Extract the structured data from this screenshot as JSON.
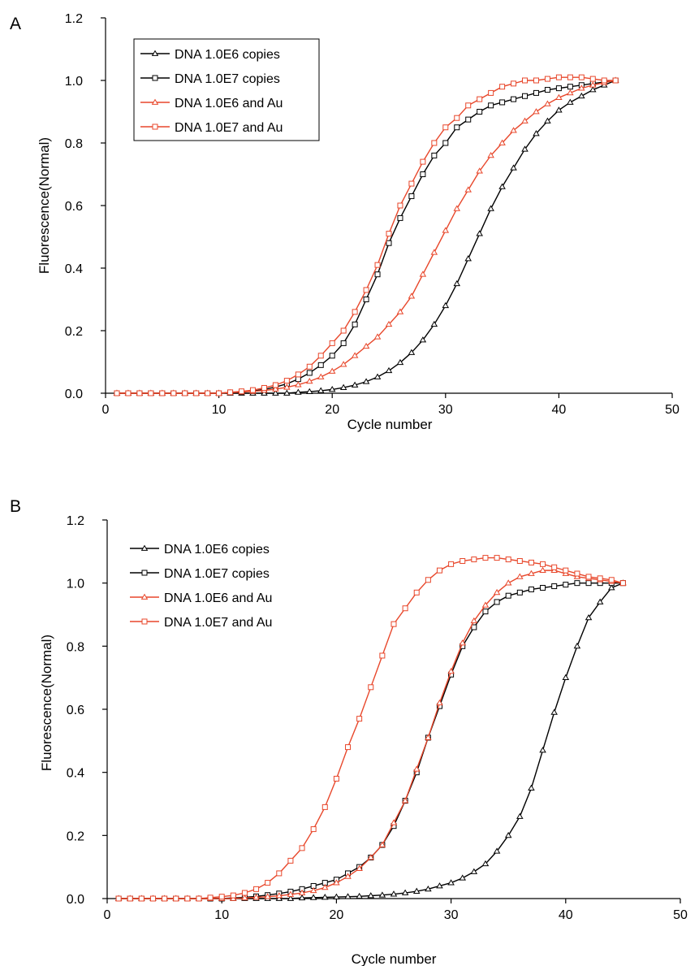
{
  "figure": {
    "panels": [
      {
        "label": "A",
        "xlabel": "Cycle number",
        "ylabel": "Fluorescence(Normal)"
      },
      {
        "label": "B",
        "xlabel": "Cycle number",
        "ylabel": "Fluorescence(Normal)"
      }
    ]
  },
  "chart_data": [
    {
      "type": "line",
      "panel": "A",
      "xlabel": "Cycle number",
      "ylabel": "Fluorescence(Normal)",
      "xlim": [
        0,
        50
      ],
      "ylim": [
        0.0,
        1.2
      ],
      "xticks": [
        "0",
        "10",
        "20",
        "30",
        "40",
        "50"
      ],
      "yticks": [
        "0.0",
        "0.2",
        "0.4",
        "0.6",
        "0.8",
        "1.0",
        "1.2"
      ],
      "grid": false,
      "legend": "top-left, boxed",
      "x": [
        1,
        2,
        3,
        4,
        5,
        6,
        7,
        8,
        9,
        10,
        11,
        12,
        13,
        14,
        15,
        16,
        17,
        18,
        19,
        20,
        21,
        22,
        23,
        24,
        25,
        26,
        27,
        28,
        29,
        30,
        31,
        32,
        33,
        34,
        35,
        36,
        37,
        38,
        39,
        40,
        41,
        42,
        43,
        44,
        45
      ],
      "series": [
        {
          "name": "DNA 1.0E6 copies",
          "color": "#000000",
          "marker": "triangle",
          "values": [
            0,
            0,
            0,
            0,
            0,
            0,
            0,
            0,
            0,
            0,
            0,
            0,
            0,
            0,
            0,
            0,
            0.003,
            0.005,
            0.008,
            0.012,
            0.018,
            0.026,
            0.037,
            0.052,
            0.072,
            0.098,
            0.13,
            0.17,
            0.22,
            0.28,
            0.35,
            0.43,
            0.51,
            0.59,
            0.66,
            0.72,
            0.78,
            0.83,
            0.87,
            0.905,
            0.93,
            0.95,
            0.97,
            0.985,
            1.0
          ]
        },
        {
          "name": "DNA 1.0E7 copies",
          "color": "#000000",
          "marker": "square",
          "values": [
            0,
            0,
            0,
            0,
            0,
            0,
            0,
            0,
            0,
            0,
            0.002,
            0.004,
            0.007,
            0.012,
            0.02,
            0.03,
            0.045,
            0.065,
            0.09,
            0.12,
            0.16,
            0.22,
            0.3,
            0.38,
            0.48,
            0.56,
            0.63,
            0.7,
            0.76,
            0.8,
            0.85,
            0.875,
            0.9,
            0.92,
            0.93,
            0.94,
            0.95,
            0.96,
            0.97,
            0.975,
            0.98,
            0.985,
            0.99,
            0.995,
            1.0
          ]
        },
        {
          "name": "DNA 1.0E6 and Au",
          "color": "#e8472b",
          "marker": "triangle",
          "values": [
            0,
            0,
            0,
            0,
            0,
            0,
            0,
            0,
            0,
            0,
            0.002,
            0.004,
            0.006,
            0.009,
            0.013,
            0.019,
            0.027,
            0.038,
            0.052,
            0.07,
            0.092,
            0.12,
            0.15,
            0.18,
            0.22,
            0.26,
            0.31,
            0.38,
            0.45,
            0.52,
            0.59,
            0.65,
            0.71,
            0.76,
            0.8,
            0.84,
            0.87,
            0.9,
            0.925,
            0.945,
            0.96,
            0.975,
            0.985,
            0.993,
            1.0
          ]
        },
        {
          "name": "DNA 1.0E7 and Au",
          "color": "#e8472b",
          "marker": "square",
          "values": [
            0,
            0,
            0,
            0,
            0,
            0,
            0,
            0,
            0,
            0,
            0.003,
            0.006,
            0.01,
            0.017,
            0.026,
            0.04,
            0.06,
            0.085,
            0.12,
            0.16,
            0.2,
            0.26,
            0.33,
            0.41,
            0.51,
            0.6,
            0.67,
            0.74,
            0.8,
            0.85,
            0.88,
            0.92,
            0.94,
            0.96,
            0.98,
            0.99,
            1.0,
            1.0,
            1.005,
            1.01,
            1.01,
            1.01,
            1.005,
            1.0,
            1.0
          ]
        }
      ]
    },
    {
      "type": "line",
      "panel": "B",
      "xlabel": "Cycle number",
      "ylabel": "Fluorescence(Normal)",
      "xlim": [
        0,
        50
      ],
      "ylim": [
        0.0,
        1.2
      ],
      "xticks": [
        "0",
        "10",
        "20",
        "30",
        "40",
        "50"
      ],
      "yticks": [
        "0.0",
        "0.2",
        "0.4",
        "0.6",
        "0.8",
        "1.0",
        "1.2"
      ],
      "grid": false,
      "legend": "top-center, no border",
      "x": [
        1,
        2,
        3,
        4,
        5,
        6,
        7,
        8,
        9,
        10,
        11,
        12,
        13,
        14,
        15,
        16,
        17,
        18,
        19,
        20,
        21,
        22,
        23,
        24,
        25,
        26,
        27,
        28,
        29,
        30,
        31,
        32,
        33,
        34,
        35,
        36,
        37,
        38,
        39,
        40,
        41,
        42,
        43,
        44,
        45
      ],
      "series": [
        {
          "name": "DNA 1.0E6 copies",
          "color": "#000000",
          "marker": "triangle",
          "values": [
            0,
            0,
            0,
            0,
            0,
            0,
            0,
            0,
            0,
            0,
            0,
            0,
            0,
            0,
            0,
            0,
            0.002,
            0.003,
            0.004,
            0.005,
            0.006,
            0.007,
            0.009,
            0.011,
            0.014,
            0.018,
            0.023,
            0.03,
            0.04,
            0.05,
            0.065,
            0.085,
            0.11,
            0.15,
            0.2,
            0.26,
            0.35,
            0.47,
            0.59,
            0.7,
            0.8,
            0.89,
            0.94,
            0.985,
            1.0
          ]
        },
        {
          "name": "DNA 1.0E7 copies",
          "color": "#000000",
          "marker": "square",
          "values": [
            0,
            0,
            0,
            0,
            0,
            0,
            0,
            0,
            0,
            0,
            0.002,
            0.004,
            0.007,
            0.011,
            0.016,
            0.022,
            0.03,
            0.04,
            0.05,
            0.06,
            0.08,
            0.1,
            0.13,
            0.17,
            0.23,
            0.31,
            0.4,
            0.51,
            0.61,
            0.71,
            0.8,
            0.86,
            0.91,
            0.94,
            0.96,
            0.97,
            0.98,
            0.985,
            0.99,
            0.995,
            1.0,
            1.0,
            1.0,
            1.0,
            1.0
          ]
        },
        {
          "name": "DNA 1.0E6 and Au",
          "color": "#e8472b",
          "marker": "triangle",
          "values": [
            0,
            0,
            0,
            0,
            0,
            0,
            0,
            0,
            0,
            0,
            0,
            0.002,
            0.004,
            0.006,
            0.009,
            0.013,
            0.018,
            0.025,
            0.035,
            0.05,
            0.07,
            0.095,
            0.13,
            0.17,
            0.24,
            0.31,
            0.41,
            0.51,
            0.62,
            0.72,
            0.81,
            0.88,
            0.93,
            0.97,
            1.0,
            1.02,
            1.03,
            1.04,
            1.04,
            1.03,
            1.02,
            1.015,
            1.01,
            1.005,
            1.0
          ]
        },
        {
          "name": "DNA 1.0E7 and Au",
          "color": "#e8472b",
          "marker": "square",
          "values": [
            0,
            0,
            0,
            0,
            0,
            0,
            0,
            0,
            0.003,
            0.006,
            0.01,
            0.018,
            0.03,
            0.05,
            0.08,
            0.12,
            0.16,
            0.22,
            0.29,
            0.38,
            0.48,
            0.57,
            0.67,
            0.77,
            0.87,
            0.92,
            0.97,
            1.01,
            1.04,
            1.06,
            1.07,
            1.075,
            1.08,
            1.08,
            1.075,
            1.07,
            1.065,
            1.06,
            1.05,
            1.04,
            1.03,
            1.02,
            1.015,
            1.01,
            1.0
          ]
        }
      ]
    }
  ]
}
